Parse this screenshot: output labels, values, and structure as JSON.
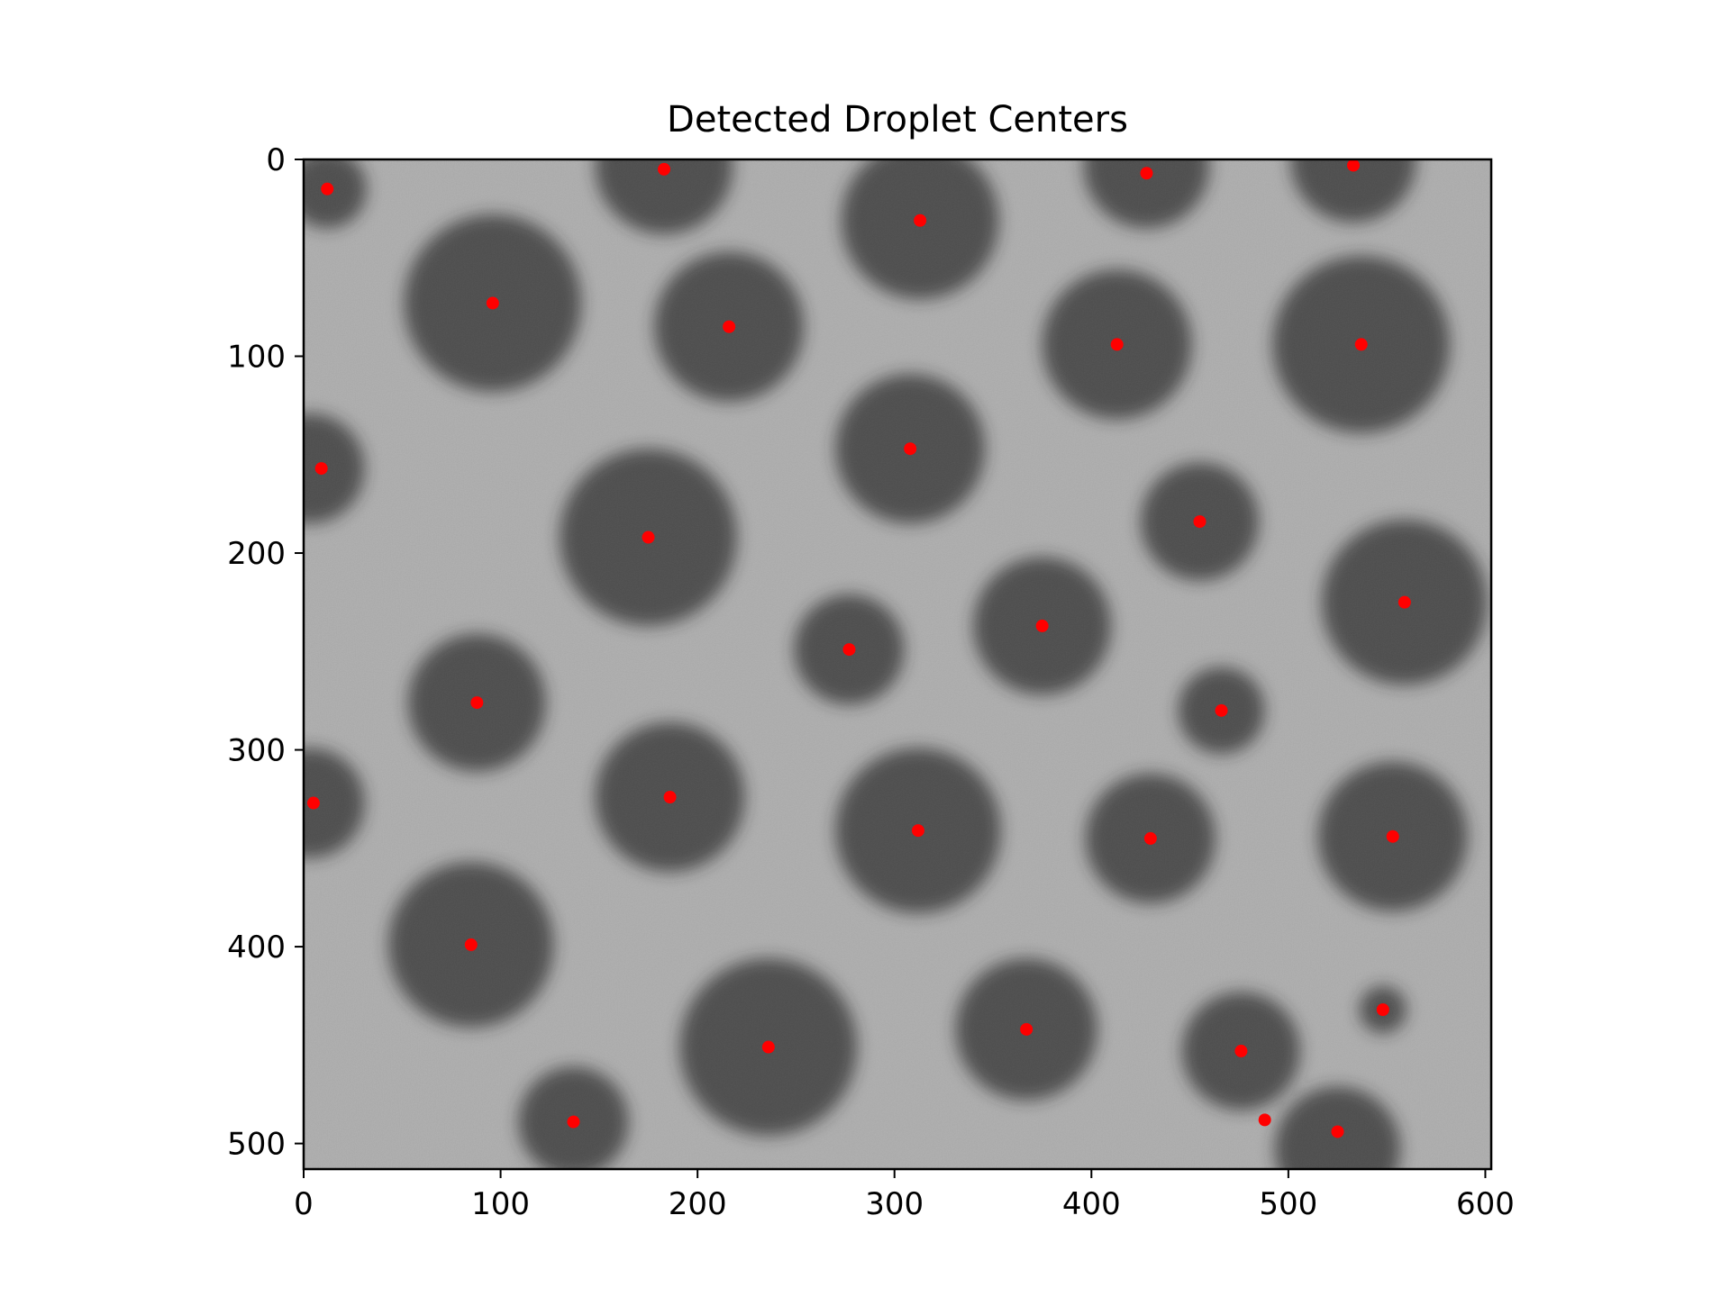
{
  "chart_data": {
    "type": "scatter",
    "title": "Detected Droplet Centers",
    "xlabel": "",
    "ylabel": "",
    "xlim": [
      0,
      603
    ],
    "ylim": [
      513,
      0
    ],
    "y_axis_inverted": true,
    "background": "grayscale microscopy image of dark circular droplets on a light gray noisy background",
    "grid": false,
    "legend": "none",
    "marker_color": "#ff0000",
    "x_ticks": [
      0,
      100,
      200,
      300,
      400,
      500,
      600
    ],
    "y_ticks": [
      0,
      100,
      200,
      300,
      400,
      500
    ],
    "points": [
      {
        "x": 12,
        "y": 15
      },
      {
        "x": 183,
        "y": 5
      },
      {
        "x": 428,
        "y": 7
      },
      {
        "x": 533,
        "y": 3
      },
      {
        "x": 313,
        "y": 31
      },
      {
        "x": 96,
        "y": 73
      },
      {
        "x": 216,
        "y": 85
      },
      {
        "x": 413,
        "y": 94
      },
      {
        "x": 537,
        "y": 94
      },
      {
        "x": 9,
        "y": 157
      },
      {
        "x": 308,
        "y": 147
      },
      {
        "x": 455,
        "y": 184
      },
      {
        "x": 175,
        "y": 192
      },
      {
        "x": 559,
        "y": 225
      },
      {
        "x": 375,
        "y": 237
      },
      {
        "x": 277,
        "y": 249
      },
      {
        "x": 88,
        "y": 276
      },
      {
        "x": 466,
        "y": 280
      },
      {
        "x": 5,
        "y": 327
      },
      {
        "x": 186,
        "y": 324
      },
      {
        "x": 312,
        "y": 341
      },
      {
        "x": 430,
        "y": 345
      },
      {
        "x": 553,
        "y": 344
      },
      {
        "x": 85,
        "y": 399
      },
      {
        "x": 367,
        "y": 442
      },
      {
        "x": 548,
        "y": 432
      },
      {
        "x": 236,
        "y": 451
      },
      {
        "x": 476,
        "y": 453
      },
      {
        "x": 137,
        "y": 489
      },
      {
        "x": 488,
        "y": 488
      },
      {
        "x": 525,
        "y": 494
      }
    ],
    "droplets": [
      {
        "x": 12,
        "y": 15,
        "r": 20
      },
      {
        "x": 183,
        "y": 3,
        "r": 35
      },
      {
        "x": 428,
        "y": 3,
        "r": 32
      },
      {
        "x": 533,
        "y": 0,
        "r": 32
      },
      {
        "x": 313,
        "y": 31,
        "r": 40
      },
      {
        "x": 96,
        "y": 73,
        "r": 45
      },
      {
        "x": 216,
        "y": 85,
        "r": 38
      },
      {
        "x": 413,
        "y": 94,
        "r": 38
      },
      {
        "x": 537,
        "y": 94,
        "r": 45
      },
      {
        "x": 3,
        "y": 157,
        "r": 28
      },
      {
        "x": 308,
        "y": 147,
        "r": 38
      },
      {
        "x": 455,
        "y": 184,
        "r": 30
      },
      {
        "x": 175,
        "y": 192,
        "r": 45
      },
      {
        "x": 559,
        "y": 225,
        "r": 42
      },
      {
        "x": 375,
        "y": 237,
        "r": 35
      },
      {
        "x": 277,
        "y": 249,
        "r": 28
      },
      {
        "x": 88,
        "y": 276,
        "r": 35
      },
      {
        "x": 466,
        "y": 280,
        "r": 22
      },
      {
        "x": 3,
        "y": 327,
        "r": 28
      },
      {
        "x": 186,
        "y": 324,
        "r": 38
      },
      {
        "x": 312,
        "y": 341,
        "r": 42
      },
      {
        "x": 430,
        "y": 345,
        "r": 33
      },
      {
        "x": 553,
        "y": 344,
        "r": 38
      },
      {
        "x": 85,
        "y": 399,
        "r": 42
      },
      {
        "x": 367,
        "y": 442,
        "r": 36
      },
      {
        "x": 548,
        "y": 432,
        "r": 12
      },
      {
        "x": 236,
        "y": 451,
        "r": 45
      },
      {
        "x": 476,
        "y": 453,
        "r": 30
      },
      {
        "x": 137,
        "y": 489,
        "r": 28
      },
      {
        "x": 525,
        "y": 503,
        "r": 32
      }
    ]
  }
}
